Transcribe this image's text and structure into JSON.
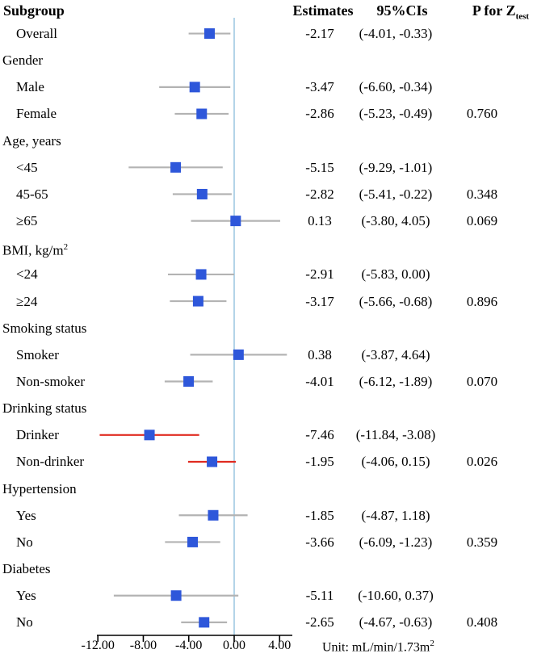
{
  "header": {
    "subgroup": "Subgroup",
    "estimates": "Estimates",
    "ci": "95%CIs",
    "p_prefix": "P for Z",
    "p_sub": "test"
  },
  "unit": {
    "prefix": "Unit: mL/min/1.73m",
    "sup": "2"
  },
  "colors": {
    "marker": "#2e57da",
    "ci_default": "#b3b3b3",
    "ci_highlight": "#e02b20",
    "zero_line": "#abcfe5",
    "axis": "#000000"
  },
  "chart_data": {
    "type": "forest",
    "x_ticks": [
      -12,
      -8,
      -4,
      0,
      4
    ],
    "x_tick_labels": [
      "-12.00",
      "-8.00",
      "-4.00",
      "0.00",
      "4.00"
    ],
    "xlim": [
      -12,
      5.1
    ],
    "zero_line": 0,
    "grid": false,
    "rows": [
      {
        "label": "Overall",
        "group": false,
        "estimate": -2.17,
        "ci": [
          -4.01,
          -0.33
        ],
        "estimate_text": "-2.17",
        "ci_text": "(-4.01, -0.33)",
        "p_text": "",
        "highlight": false
      },
      {
        "label": "Gender",
        "group": true
      },
      {
        "label": "Male",
        "group": false,
        "estimate": -3.47,
        "ci": [
          -6.6,
          -0.34
        ],
        "estimate_text": "-3.47",
        "ci_text": "(-6.60, -0.34)",
        "p_text": "",
        "highlight": false
      },
      {
        "label": "Female",
        "group": false,
        "estimate": -2.86,
        "ci": [
          -5.23,
          -0.49
        ],
        "estimate_text": "-2.86",
        "ci_text": "(-5.23, -0.49)",
        "p_text": "0.760",
        "highlight": false
      },
      {
        "label": "Age, years",
        "group": true
      },
      {
        "label": "<45",
        "group": false,
        "estimate": -5.15,
        "ci": [
          -9.29,
          -1.01
        ],
        "estimate_text": "-5.15",
        "ci_text": "(-9.29, -1.01)",
        "p_text": "",
        "highlight": false
      },
      {
        "label": "45-65",
        "group": false,
        "estimate": -2.82,
        "ci": [
          -5.41,
          -0.22
        ],
        "estimate_text": "-2.82",
        "ci_text": "(-5.41, -0.22)",
        "p_text": "0.348",
        "highlight": false
      },
      {
        "label": "≥65",
        "group": false,
        "estimate": 0.13,
        "ci": [
          -3.8,
          4.05
        ],
        "estimate_text": "0.13",
        "ci_text": "(-3.80, 4.05)",
        "p_text": "0.069",
        "highlight": false
      },
      {
        "label": "BMI, kg/m²",
        "group": true
      },
      {
        "label": "<24",
        "group": false,
        "estimate": -2.91,
        "ci": [
          -5.83,
          0.0
        ],
        "estimate_text": "-2.91",
        "ci_text": "(-5.83, 0.00)",
        "p_text": "",
        "highlight": false
      },
      {
        "label": "≥24",
        "group": false,
        "estimate": -3.17,
        "ci": [
          -5.66,
          -0.68
        ],
        "estimate_text": "-3.17",
        "ci_text": "(-5.66, -0.68)",
        "p_text": "0.896",
        "highlight": false
      },
      {
        "label": "Smoking status",
        "group": true
      },
      {
        "label": "Smoker",
        "group": false,
        "estimate": 0.38,
        "ci": [
          -3.87,
          4.64
        ],
        "estimate_text": "0.38",
        "ci_text": "(-3.87, 4.64)",
        "p_text": "",
        "highlight": false
      },
      {
        "label": "Non-smoker",
        "group": false,
        "estimate": -4.01,
        "ci": [
          -6.12,
          -1.89
        ],
        "estimate_text": "-4.01",
        "ci_text": "(-6.12, -1.89)",
        "p_text": "0.070",
        "highlight": false
      },
      {
        "label": "Drinking status",
        "group": true
      },
      {
        "label": "Drinker",
        "group": false,
        "estimate": -7.46,
        "ci": [
          -11.84,
          -3.08
        ],
        "estimate_text": "-7.46",
        "ci_text": "(-11.84, -3.08)",
        "p_text": "",
        "highlight": true
      },
      {
        "label": "Non-drinker",
        "group": false,
        "estimate": -1.95,
        "ci": [
          -4.06,
          0.15
        ],
        "estimate_text": "-1.95",
        "ci_text": "(-4.06, 0.15)",
        "p_text": "0.026",
        "highlight": true
      },
      {
        "label": "Hypertension",
        "group": true
      },
      {
        "label": "Yes",
        "group": false,
        "estimate": -1.85,
        "ci": [
          -4.87,
          1.18
        ],
        "estimate_text": "-1.85",
        "ci_text": "(-4.87, 1.18)",
        "p_text": "",
        "highlight": false
      },
      {
        "label": "No",
        "group": false,
        "estimate": -3.66,
        "ci": [
          -6.09,
          -1.23
        ],
        "estimate_text": "-3.66",
        "ci_text": "(-6.09, -1.23)",
        "p_text": "0.359",
        "highlight": false
      },
      {
        "label": "Diabetes",
        "group": true
      },
      {
        "label": "Yes",
        "group": false,
        "estimate": -5.11,
        "ci": [
          -10.6,
          0.37
        ],
        "estimate_text": "-5.11",
        "ci_text": "(-10.60, 0.37)",
        "p_text": "",
        "highlight": false
      },
      {
        "label": "No",
        "group": false,
        "estimate": -2.65,
        "ci": [
          -4.67,
          -0.63
        ],
        "estimate_text": "-2.65",
        "ci_text": "(-4.67, -0.63)",
        "p_text": "0.408",
        "highlight": false
      }
    ]
  }
}
